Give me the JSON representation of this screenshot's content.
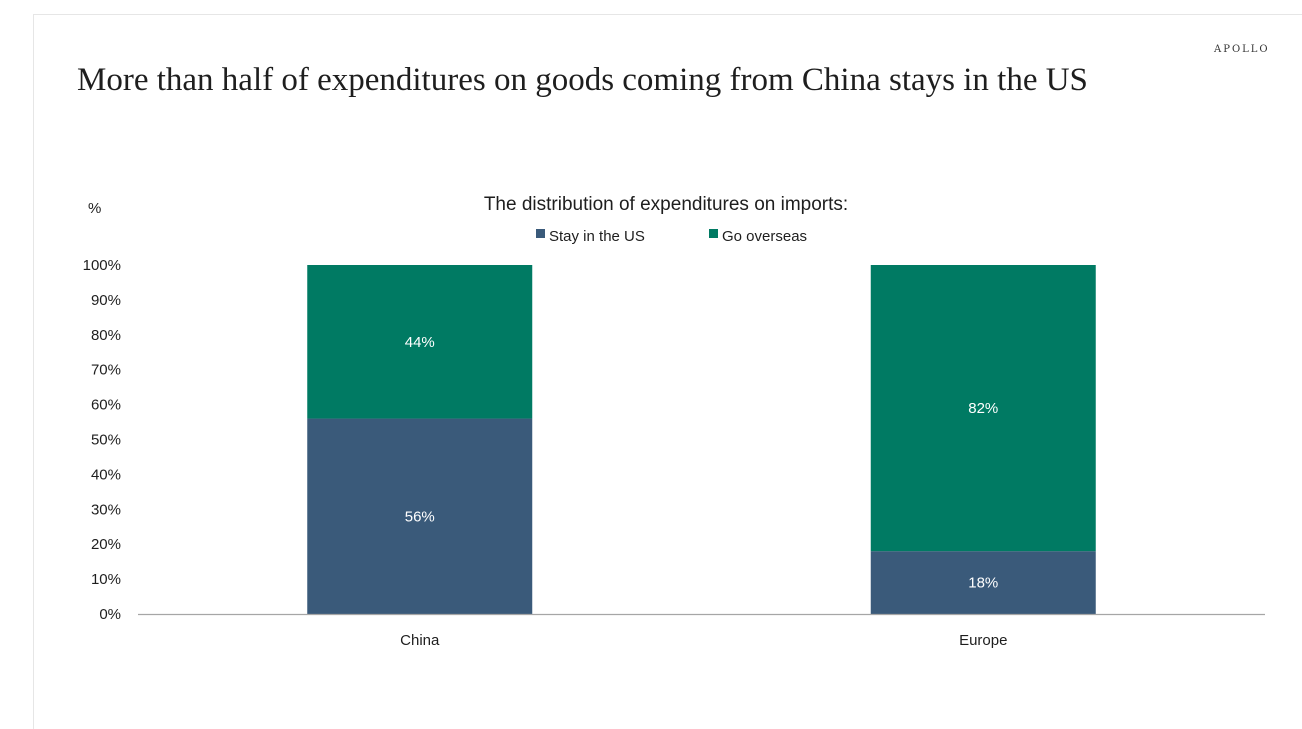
{
  "brand": "APOLLO",
  "title": "More than half of expenditures on goods coming from China stays in the US",
  "chart_data": {
    "type": "bar",
    "stacked": true,
    "subtitle": "The distribution of expenditures on imports:",
    "ylabel": "%",
    "xlabel": "",
    "ylim": [
      0,
      100
    ],
    "yticks": [
      0,
      10,
      20,
      30,
      40,
      50,
      60,
      70,
      80,
      90,
      100
    ],
    "ytick_suffix": "%",
    "categories": [
      "China",
      "Europe"
    ],
    "series": [
      {
        "name": "Stay in the US",
        "color": "#3a5a7a",
        "values": [
          56,
          18
        ]
      },
      {
        "name": "Go overseas",
        "color": "#007a63",
        "values": [
          44,
          82
        ]
      }
    ],
    "data_label_suffix": "%",
    "legend": "top-center",
    "grid": false
  }
}
